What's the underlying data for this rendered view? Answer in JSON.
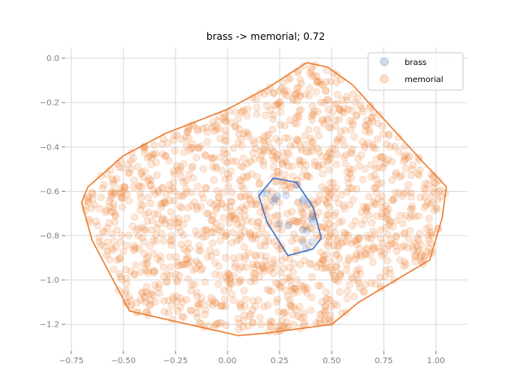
{
  "chart_data": {
    "type": "scatter",
    "title": "brass -> memorial; 0.72",
    "xlabel": "",
    "ylabel": "",
    "xlim": [
      -0.78,
      1.15
    ],
    "ylim": [
      -1.32,
      0.05
    ],
    "grid": true,
    "x_ticks": [
      -0.75,
      -0.5,
      -0.25,
      0.0,
      0.25,
      0.5,
      0.75,
      1.0
    ],
    "x_tick_labels": [
      "−0.75",
      "−0.50",
      "−0.25",
      "0.00",
      "0.25",
      "0.50",
      "0.75",
      "1.00"
    ],
    "y_ticks": [
      0.0,
      -0.2,
      -0.4,
      -0.6,
      -0.8,
      -1.0,
      -1.2
    ],
    "y_tick_labels": [
      "0.0",
      "−0.2",
      "−0.4",
      "−0.6",
      "−0.8",
      "−1.0",
      "−1.2"
    ],
    "legend_position": "top-right",
    "series": [
      {
        "name": "brass",
        "color": "#4472c4",
        "point_count": 20,
        "hull": [
          [
            0.22,
            -0.54
          ],
          [
            0.33,
            -0.56
          ],
          [
            0.41,
            -0.67
          ],
          [
            0.45,
            -0.81
          ],
          [
            0.41,
            -0.86
          ],
          [
            0.29,
            -0.89
          ],
          [
            0.19,
            -0.74
          ],
          [
            0.15,
            -0.62
          ]
        ]
      },
      {
        "name": "memorial",
        "color": "#ed7d31",
        "point_count": 1500,
        "hull": [
          [
            0.38,
            -0.02
          ],
          [
            0.48,
            -0.04
          ],
          [
            0.6,
            -0.12
          ],
          [
            0.94,
            -0.47
          ],
          [
            1.05,
            -0.58
          ],
          [
            1.03,
            -0.72
          ],
          [
            0.97,
            -0.91
          ],
          [
            0.63,
            -1.1
          ],
          [
            0.5,
            -1.2
          ],
          [
            0.18,
            -1.24
          ],
          [
            0.05,
            -1.25
          ],
          [
            -0.47,
            -1.14
          ],
          [
            -0.65,
            -0.82
          ],
          [
            -0.7,
            -0.65
          ],
          [
            -0.67,
            -0.58
          ],
          [
            -0.5,
            -0.44
          ],
          [
            -0.3,
            -0.34
          ],
          [
            0.0,
            -0.23
          ],
          [
            0.2,
            -0.13
          ]
        ]
      }
    ]
  }
}
